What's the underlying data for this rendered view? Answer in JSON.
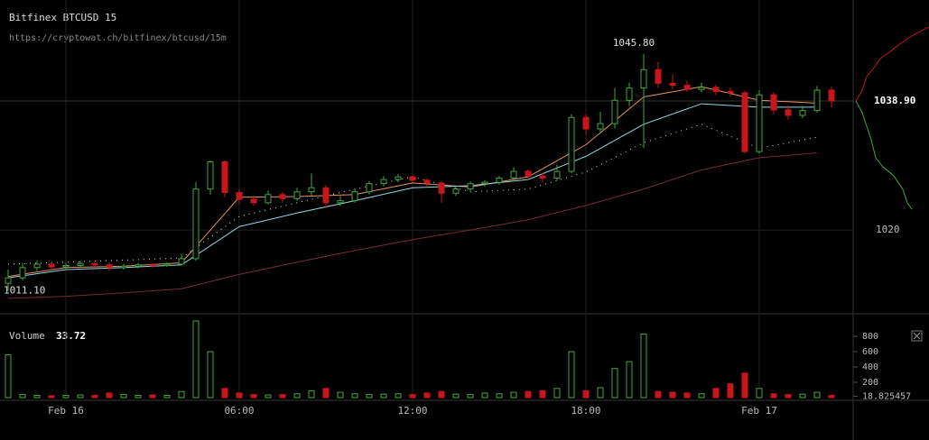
{
  "header": {
    "title": "Bitfinex BTCUSD 15",
    "url": "https://cryptowat.ch/bitfinex/btcusd/15m"
  },
  "chart_data": {
    "type": "candlestick",
    "up_color": "#3fa83f",
    "down_color": "#c8161d",
    "categories": [
      null,
      null,
      null,
      null,
      "Feb 16",
      null,
      null,
      null,
      null,
      null,
      null,
      null,
      null,
      null,
      null,
      null,
      "06:00",
      null,
      null,
      null,
      null,
      null,
      null,
      null,
      null,
      null,
      null,
      null,
      "12:00",
      null,
      null,
      null,
      null,
      null,
      null,
      null,
      null,
      null,
      null,
      null,
      "18:00",
      null,
      null,
      null,
      null,
      null,
      null,
      null,
      null,
      null,
      null,
      null,
      "Feb 17",
      null,
      null,
      null,
      null,
      null
    ],
    "ylim": [
      1008,
      1053.7
    ],
    "yticks": [
      1020
    ],
    "grid": true,
    "candles": [
      [
        1012.2,
        1014.2,
        1011.1,
        1013.0
      ],
      [
        1013.0,
        1015.2,
        1012.6,
        1014.5
      ],
      [
        1014.5,
        1015.6,
        1014.0,
        1015.0
      ],
      [
        1015.0,
        1015.3,
        1014.2,
        1014.6
      ],
      [
        1014.6,
        1015.2,
        1014.3,
        1014.8
      ],
      [
        1014.8,
        1015.5,
        1014.5,
        1015.1
      ],
      [
        1015.1,
        1015.4,
        1014.4,
        1014.9
      ],
      [
        1014.9,
        1015.2,
        1014.0,
        1014.5
      ],
      [
        1014.5,
        1015.0,
        1014.2,
        1014.7
      ],
      [
        1014.7,
        1015.2,
        1014.4,
        1014.9
      ],
      [
        1014.9,
        1015.1,
        1014.5,
        1014.8
      ],
      [
        1014.8,
        1015.3,
        1014.6,
        1015.0
      ],
      [
        1015.0,
        1016.5,
        1014.8,
        1015.8
      ],
      [
        1015.8,
        1027.0,
        1015.5,
        1026.0
      ],
      [
        1026.0,
        1030.2,
        1025.2,
        1030.0
      ],
      [
        1030.0,
        1030.2,
        1024.8,
        1025.5
      ],
      [
        1025.5,
        1026.0,
        1023.8,
        1024.5
      ],
      [
        1024.5,
        1025.0,
        1023.6,
        1024.0
      ],
      [
        1024.0,
        1025.8,
        1023.8,
        1025.2
      ],
      [
        1025.2,
        1025.6,
        1024.0,
        1024.6
      ],
      [
        1024.6,
        1026.2,
        1024.3,
        1025.6
      ],
      [
        1025.6,
        1028.3,
        1025.0,
        1026.2
      ],
      [
        1026.2,
        1026.6,
        1023.2,
        1024.0
      ],
      [
        1024.0,
        1025.0,
        1023.5,
        1024.3
      ],
      [
        1024.3,
        1026.0,
        1024.0,
        1025.6
      ],
      [
        1025.6,
        1027.2,
        1025.2,
        1026.8
      ],
      [
        1026.8,
        1027.9,
        1026.4,
        1027.4
      ],
      [
        1027.4,
        1028.2,
        1027.0,
        1027.8
      ],
      [
        1027.8,
        1028.0,
        1027.0,
        1027.3
      ],
      [
        1027.3,
        1027.6,
        1026.3,
        1026.9
      ],
      [
        1026.9,
        1027.2,
        1024.0,
        1025.4
      ],
      [
        1025.4,
        1026.3,
        1025.0,
        1026.0
      ],
      [
        1026.0,
        1027.1,
        1025.7,
        1026.8
      ],
      [
        1026.8,
        1027.3,
        1026.4,
        1027.0
      ],
      [
        1027.0,
        1027.9,
        1026.6,
        1027.6
      ],
      [
        1027.6,
        1029.2,
        1027.3,
        1028.6
      ],
      [
        1028.6,
        1028.9,
        1027.4,
        1027.9
      ],
      [
        1027.9,
        1028.4,
        1027.0,
        1027.6
      ],
      [
        1027.6,
        1029.6,
        1027.3,
        1028.6
      ],
      [
        1028.6,
        1037.0,
        1028.3,
        1036.5
      ],
      [
        1036.5,
        1037.0,
        1034.0,
        1034.8
      ],
      [
        1034.8,
        1037.3,
        1034.2,
        1035.6
      ],
      [
        1035.6,
        1040.8,
        1034.9,
        1039.0
      ],
      [
        1039.0,
        1041.6,
        1038.2,
        1040.8
      ],
      [
        1040.8,
        1045.8,
        1032.0,
        1043.5
      ],
      [
        1043.5,
        1044.6,
        1040.8,
        1041.5
      ],
      [
        1041.5,
        1042.8,
        1040.6,
        1041.2
      ],
      [
        1041.2,
        1041.9,
        1040.2,
        1040.6
      ],
      [
        1040.6,
        1041.6,
        1040.2,
        1040.9
      ],
      [
        1040.9,
        1041.3,
        1039.8,
        1040.3
      ],
      [
        1040.3,
        1040.9,
        1039.5,
        1040.1
      ],
      [
        1040.1,
        1040.4,
        1031.2,
        1031.5
      ],
      [
        1031.5,
        1040.5,
        1031.2,
        1039.8
      ],
      [
        1039.8,
        1040.2,
        1037.0,
        1037.6
      ],
      [
        1037.6,
        1038.3,
        1036.2,
        1036.8
      ],
      [
        1036.8,
        1038.2,
        1036.4,
        1037.5
      ],
      [
        1037.5,
        1041.1,
        1037.2,
        1040.5
      ],
      [
        1040.5,
        1041.0,
        1038.0,
        1038.9
      ]
    ],
    "lines": [
      {
        "color": "#e8905a",
        "dash": false,
        "x": [
          0,
          4,
          8,
          12,
          16,
          20,
          24,
          28,
          32,
          36,
          40,
          44,
          48,
          52,
          56
        ],
        "values": [
          1013.2,
          1014.5,
          1014.7,
          1015.2,
          1024.8,
          1024.9,
          1025.2,
          1026.9,
          1026.3,
          1027.8,
          1032.5,
          1039.5,
          1041.0,
          1039.0,
          1038.6
        ]
      },
      {
        "color": "#8fd6e0",
        "dash": false,
        "x": [
          0,
          4,
          8,
          12,
          16,
          20,
          24,
          28,
          32,
          36,
          40,
          44,
          48,
          52,
          56
        ],
        "values": [
          1013.0,
          1014.2,
          1014.5,
          1014.9,
          1020.5,
          1022.5,
          1024.3,
          1026.2,
          1026.5,
          1027.4,
          1030.8,
          1035.5,
          1038.5,
          1038.0,
          1038.0
        ]
      },
      {
        "color": "#7a2a36",
        "dash": false,
        "x": [
          0,
          4,
          8,
          12,
          16,
          20,
          24,
          28,
          32,
          36,
          40,
          44,
          48,
          52,
          56
        ],
        "values": [
          1010.0,
          1010.3,
          1010.8,
          1011.4,
          1013.5,
          1015.3,
          1017.0,
          1018.6,
          1020.0,
          1021.5,
          1023.6,
          1026.0,
          1028.8,
          1030.6,
          1031.3
        ]
      },
      {
        "color": "#dddddd",
        "dash": true,
        "x": [
          0,
          4,
          8,
          12,
          16,
          20,
          24,
          28,
          32,
          36,
          40,
          44,
          48,
          52,
          56
        ],
        "values": [
          1015.0,
          1015.3,
          1015.6,
          1015.9,
          1022.0,
          1024.0,
          1026.0,
          1027.8,
          1025.6,
          1026.0,
          1028.5,
          1032.8,
          1035.5,
          1032.0,
          1033.6
        ]
      }
    ],
    "high_marker": {
      "value": 1045.8,
      "label": "1045.80"
    },
    "low_marker": {
      "value": 1011.1,
      "label": "1011.10"
    },
    "last_price": {
      "value": 1038.9,
      "label": "1038.90"
    },
    "volume_label": "Volume",
    "volume_current": 33.72,
    "vlim": [
      0,
      1012
    ],
    "vticks": [
      800,
      600,
      400,
      200,
      18.825457
    ],
    "volume": [
      560,
      40,
      30,
      25,
      30,
      35,
      30,
      60,
      40,
      30,
      35,
      30,
      80,
      1000,
      600,
      120,
      60,
      40,
      35,
      40,
      50,
      90,
      120,
      70,
      50,
      40,
      45,
      50,
      40,
      60,
      80,
      45,
      40,
      60,
      50,
      70,
      80,
      90,
      120,
      600,
      90,
      130,
      380,
      470,
      830,
      80,
      70,
      60,
      50,
      120,
      180,
      320,
      120,
      50,
      40,
      45,
      70,
      30
    ]
  }
}
